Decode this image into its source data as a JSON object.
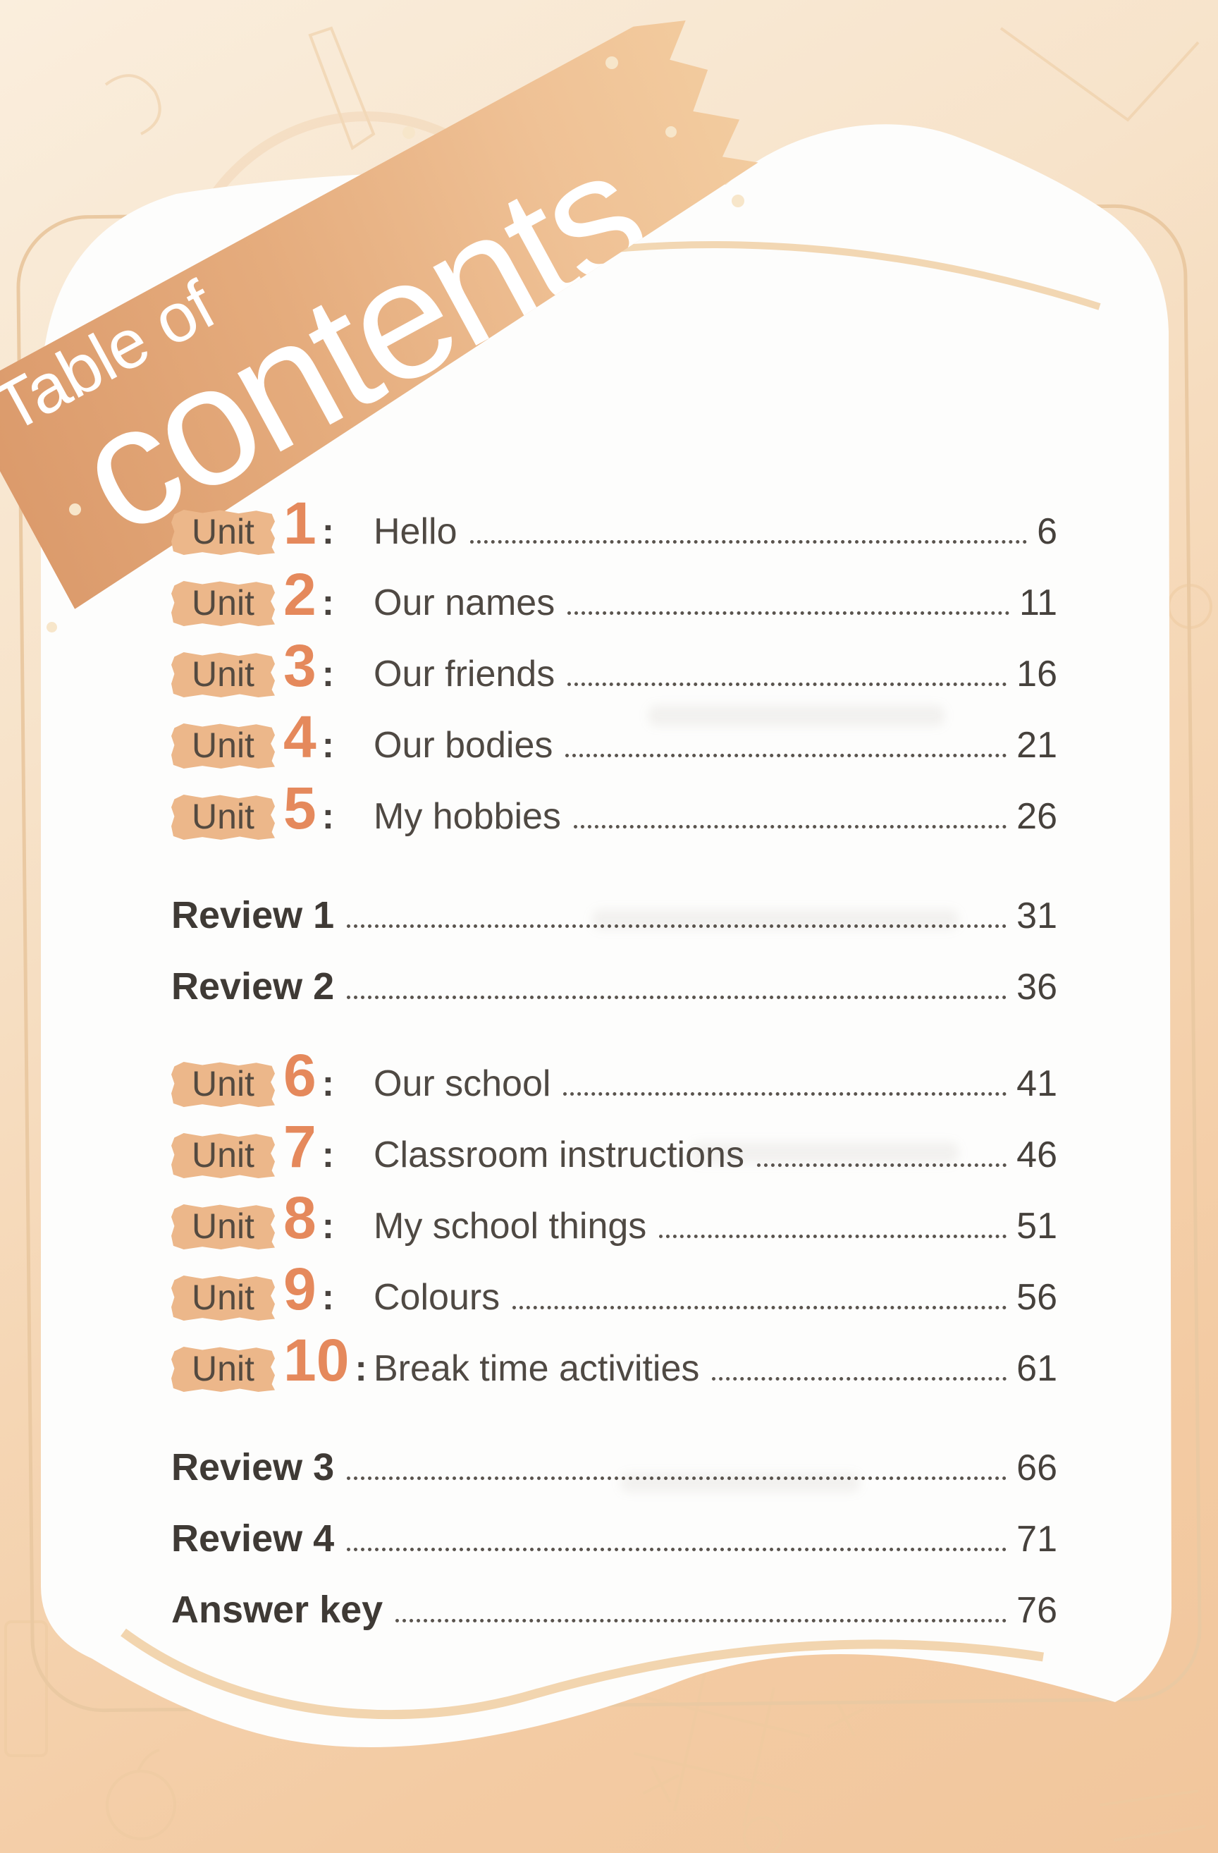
{
  "banner": {
    "pretitle": "Table of",
    "title": "contents"
  },
  "toc": {
    "separator": ":",
    "rows": [
      {
        "kind": "unit",
        "label": "Unit",
        "number": "1",
        "title": "Hello",
        "page": "6"
      },
      {
        "kind": "unit",
        "label": "Unit",
        "number": "2",
        "title": "Our names",
        "page": "11"
      },
      {
        "kind": "unit",
        "label": "Unit",
        "number": "3",
        "title": "Our friends",
        "page": "16"
      },
      {
        "kind": "unit",
        "label": "Unit",
        "number": "4",
        "title": "Our bodies",
        "page": "21"
      },
      {
        "kind": "unit",
        "label": "Unit",
        "number": "5",
        "title": "My hobbies",
        "page": "26"
      },
      {
        "kind": "review",
        "title": "Review 1",
        "page": "31",
        "group_break": true
      },
      {
        "kind": "review",
        "title": "Review 2",
        "page": "36"
      },
      {
        "kind": "unit",
        "label": "Unit",
        "number": "6",
        "title": "Our school",
        "page": "41",
        "group_break": true
      },
      {
        "kind": "unit",
        "label": "Unit",
        "number": "7",
        "title": "Classroom instructions",
        "page": "46"
      },
      {
        "kind": "unit",
        "label": "Unit",
        "number": "8",
        "title": "My school things",
        "page": "51"
      },
      {
        "kind": "unit",
        "label": "Unit",
        "number": "9",
        "title": "Colours",
        "page": "56"
      },
      {
        "kind": "unit",
        "label": "Unit",
        "number": "10",
        "title": "Break time activities",
        "page": "61"
      },
      {
        "kind": "review",
        "title": "Review 3",
        "page": "66",
        "group_break": true
      },
      {
        "kind": "review",
        "title": "Review 4",
        "page": "71"
      },
      {
        "kind": "review",
        "title": "Answer key",
        "page": "76"
      }
    ]
  },
  "colors": {
    "banner_start": "#db9a6b",
    "banner_end": "#f3cc9f",
    "badge_bg": "#ecb78a",
    "unit_number": "#e5895c",
    "text": "#4a443f",
    "leader": "#5a544e",
    "card": "#fdfdfc",
    "stripe": "#f1d3ab",
    "page_bg_light": "#faeedd",
    "page_bg_dark": "#f2c69c"
  }
}
